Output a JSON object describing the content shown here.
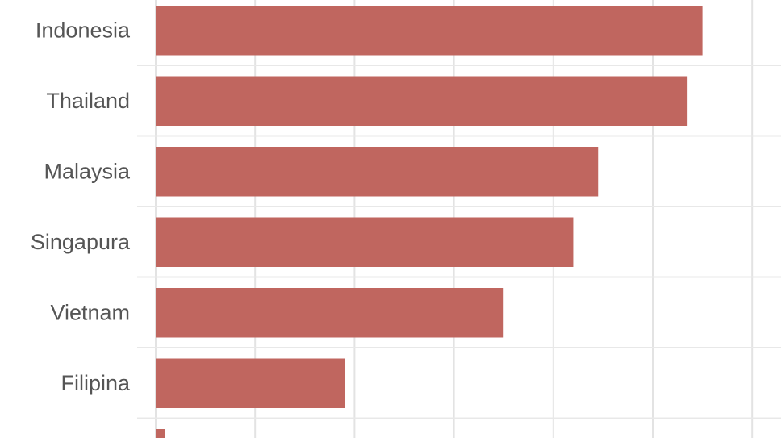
{
  "chart_data": {
    "type": "bar",
    "orientation": "horizontal",
    "categories": [
      "Indonesia",
      "Thailand",
      "Malaysia",
      "Singapura",
      "Vietnam",
      "Filipina",
      ""
    ],
    "values": [
      5.5,
      5.35,
      4.45,
      4.2,
      3.5,
      1.9,
      0.09
    ],
    "xlim": [
      0,
      6
    ],
    "grid": true,
    "bar_color": "#c0665f",
    "title": "",
    "xlabel": "",
    "ylabel": ""
  }
}
